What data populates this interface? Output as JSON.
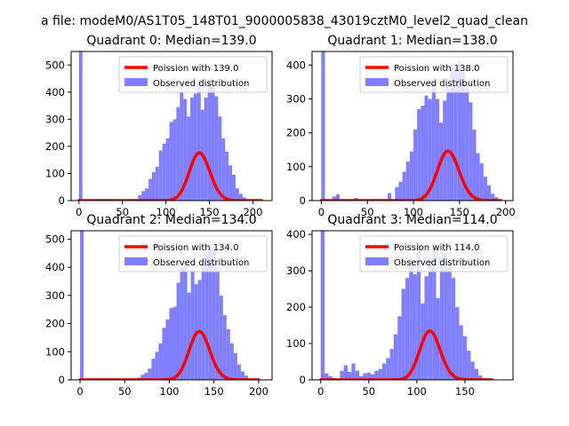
{
  "figure": {
    "title": "a file: modeM0/AS1T05_148T01_9000005838_43019cztM0_level2_quad_clean"
  },
  "chart_data": [
    {
      "type": "bar",
      "title": "Quadrant 0: Median=139.0",
      "median": 139.0,
      "bin_width": 4,
      "xlim": [
        -9,
        222
      ],
      "ylim": [
        0,
        550
      ],
      "xticks": [
        0,
        50,
        100,
        150,
        200
      ],
      "yticks": [
        0,
        100,
        200,
        300,
        400,
        500
      ],
      "legend": {
        "position": "upper-right",
        "entries": [
          "Poission with 139.0",
          "Observed distribution"
        ]
      },
      "series": [
        {
          "name": "Observed distribution",
          "color": "#7f7fff",
          "bins": [
            {
              "x": 0,
              "y": 550
            },
            {
              "x": 4,
              "y": 5
            },
            {
              "x": 68,
              "y": 20
            },
            {
              "x": 72,
              "y": 35
            },
            {
              "x": 76,
              "y": 45
            },
            {
              "x": 80,
              "y": 80
            },
            {
              "x": 84,
              "y": 105
            },
            {
              "x": 88,
              "y": 125
            },
            {
              "x": 92,
              "y": 185
            },
            {
              "x": 96,
              "y": 210
            },
            {
              "x": 100,
              "y": 230
            },
            {
              "x": 104,
              "y": 290
            },
            {
              "x": 108,
              "y": 300
            },
            {
              "x": 112,
              "y": 345
            },
            {
              "x": 116,
              "y": 400
            },
            {
              "x": 120,
              "y": 375
            },
            {
              "x": 124,
              "y": 310
            },
            {
              "x": 128,
              "y": 380
            },
            {
              "x": 132,
              "y": 395
            },
            {
              "x": 136,
              "y": 445
            },
            {
              "x": 140,
              "y": 335
            },
            {
              "x": 144,
              "y": 380
            },
            {
              "x": 148,
              "y": 445
            },
            {
              "x": 152,
              "y": 430
            },
            {
              "x": 156,
              "y": 385
            },
            {
              "x": 160,
              "y": 310
            },
            {
              "x": 164,
              "y": 230
            },
            {
              "x": 168,
              "y": 180
            },
            {
              "x": 172,
              "y": 130
            },
            {
              "x": 176,
              "y": 95
            },
            {
              "x": 180,
              "y": 45
            },
            {
              "x": 184,
              "y": 25
            },
            {
              "x": 188,
              "y": 12
            },
            {
              "x": 192,
              "y": 5
            }
          ]
        },
        {
          "name": "Poission with 139.0",
          "color": "#ff0000",
          "kind": "poisson",
          "lambda": 139.0,
          "scale": 5200,
          "x_range": [
            0,
            210
          ]
        }
      ]
    },
    {
      "type": "bar",
      "title": "Quadrant 1: Median=138.0",
      "median": 138.0,
      "bin_width": 4,
      "xlim": [
        -10,
        208
      ],
      "ylim": [
        0,
        440
      ],
      "xticks": [
        0,
        50,
        100,
        150,
        200
      ],
      "yticks": [
        0,
        100,
        200,
        300,
        400
      ],
      "legend": {
        "position": "upper-right",
        "entries": [
          "Poission with 138.0",
          "Observed distribution"
        ]
      },
      "series": [
        {
          "name": "Observed distribution",
          "color": "#7f7fff",
          "bins": [
            {
              "x": 0,
              "y": 440
            },
            {
              "x": 12,
              "y": 12
            },
            {
              "x": 16,
              "y": 18
            },
            {
              "x": 36,
              "y": 8
            },
            {
              "x": 56,
              "y": 5
            },
            {
              "x": 72,
              "y": 22
            },
            {
              "x": 80,
              "y": 40
            },
            {
              "x": 84,
              "y": 55
            },
            {
              "x": 88,
              "y": 85
            },
            {
              "x": 92,
              "y": 115
            },
            {
              "x": 96,
              "y": 145
            },
            {
              "x": 100,
              "y": 210
            },
            {
              "x": 104,
              "y": 270
            },
            {
              "x": 108,
              "y": 280
            },
            {
              "x": 112,
              "y": 310
            },
            {
              "x": 116,
              "y": 300
            },
            {
              "x": 120,
              "y": 350
            },
            {
              "x": 124,
              "y": 300
            },
            {
              "x": 128,
              "y": 230
            },
            {
              "x": 132,
              "y": 295
            },
            {
              "x": 136,
              "y": 330
            },
            {
              "x": 140,
              "y": 405
            },
            {
              "x": 144,
              "y": 390
            },
            {
              "x": 148,
              "y": 410
            },
            {
              "x": 152,
              "y": 380
            },
            {
              "x": 156,
              "y": 330
            },
            {
              "x": 160,
              "y": 290
            },
            {
              "x": 164,
              "y": 210
            },
            {
              "x": 168,
              "y": 140
            },
            {
              "x": 172,
              "y": 110
            },
            {
              "x": 176,
              "y": 70
            },
            {
              "x": 180,
              "y": 45
            },
            {
              "x": 184,
              "y": 20
            },
            {
              "x": 188,
              "y": 10
            }
          ]
        },
        {
          "name": "Poission with 138.0",
          "color": "#ff0000",
          "kind": "poisson",
          "lambda": 138.0,
          "scale": 4300,
          "x_range": [
            0,
            195
          ]
        }
      ]
    },
    {
      "type": "bar",
      "title": "Quadrant 2: Median=134.0",
      "median": 134.0,
      "bin_width": 4,
      "xlim": [
        -10,
        215
      ],
      "ylim": [
        0,
        530
      ],
      "xticks": [
        0,
        50,
        100,
        150,
        200
      ],
      "yticks": [
        0,
        100,
        200,
        300,
        400,
        500
      ],
      "legend": {
        "position": "upper-right",
        "entries": [
          "Poission with 134.0",
          "Observed distribution"
        ]
      },
      "series": [
        {
          "name": "Observed distribution",
          "color": "#7f7fff",
          "bins": [
            {
              "x": 0,
              "y": 530
            },
            {
              "x": 56,
              "y": 5
            },
            {
              "x": 64,
              "y": 8
            },
            {
              "x": 68,
              "y": 18
            },
            {
              "x": 72,
              "y": 25
            },
            {
              "x": 76,
              "y": 40
            },
            {
              "x": 80,
              "y": 75
            },
            {
              "x": 84,
              "y": 100
            },
            {
              "x": 88,
              "y": 130
            },
            {
              "x": 92,
              "y": 185
            },
            {
              "x": 96,
              "y": 215
            },
            {
              "x": 100,
              "y": 255
            },
            {
              "x": 104,
              "y": 260
            },
            {
              "x": 108,
              "y": 345
            },
            {
              "x": 112,
              "y": 400
            },
            {
              "x": 116,
              "y": 420
            },
            {
              "x": 120,
              "y": 310
            },
            {
              "x": 124,
              "y": 390
            },
            {
              "x": 128,
              "y": 340
            },
            {
              "x": 132,
              "y": 355
            },
            {
              "x": 136,
              "y": 410
            },
            {
              "x": 140,
              "y": 450
            },
            {
              "x": 144,
              "y": 465
            },
            {
              "x": 148,
              "y": 460
            },
            {
              "x": 152,
              "y": 400
            },
            {
              "x": 156,
              "y": 300
            },
            {
              "x": 160,
              "y": 230
            },
            {
              "x": 164,
              "y": 180
            },
            {
              "x": 168,
              "y": 130
            },
            {
              "x": 172,
              "y": 95
            },
            {
              "x": 176,
              "y": 55
            },
            {
              "x": 180,
              "y": 30
            },
            {
              "x": 184,
              "y": 15
            },
            {
              "x": 188,
              "y": 5
            }
          ]
        },
        {
          "name": "Poission with 134.0",
          "color": "#ff0000",
          "kind": "poisson",
          "lambda": 134.0,
          "scale": 5000,
          "x_range": [
            0,
            200
          ]
        }
      ]
    },
    {
      "type": "bar",
      "title": "Quadrant 3: Median=114.0",
      "median": 114.0,
      "bin_width": 4,
      "xlim": [
        -9,
        200
      ],
      "ylim": [
        0,
        410
      ],
      "xticks": [
        0,
        50,
        100,
        150
      ],
      "yticks": [
        0,
        100,
        200,
        300,
        400
      ],
      "legend": {
        "position": "upper-right",
        "entries": [
          "Poission with 114.0",
          "Observed distribution"
        ]
      },
      "series": [
        {
          "name": "Observed distribution",
          "color": "#7f7fff",
          "bins": [
            {
              "x": 0,
              "y": 410
            },
            {
              "x": 4,
              "y": 18
            },
            {
              "x": 8,
              "y": 10
            },
            {
              "x": 12,
              "y": 5
            },
            {
              "x": 20,
              "y": 25
            },
            {
              "x": 24,
              "y": 40
            },
            {
              "x": 28,
              "y": 22
            },
            {
              "x": 32,
              "y": 45
            },
            {
              "x": 36,
              "y": 25
            },
            {
              "x": 40,
              "y": 10
            },
            {
              "x": 44,
              "y": 18
            },
            {
              "x": 48,
              "y": 20
            },
            {
              "x": 52,
              "y": 15
            },
            {
              "x": 56,
              "y": 25
            },
            {
              "x": 60,
              "y": 30
            },
            {
              "x": 64,
              "y": 45
            },
            {
              "x": 68,
              "y": 60
            },
            {
              "x": 72,
              "y": 85
            },
            {
              "x": 76,
              "y": 125
            },
            {
              "x": 80,
              "y": 175
            },
            {
              "x": 84,
              "y": 250
            },
            {
              "x": 88,
              "y": 280
            },
            {
              "x": 92,
              "y": 335
            },
            {
              "x": 96,
              "y": 290
            },
            {
              "x": 100,
              "y": 375
            },
            {
              "x": 104,
              "y": 210
            },
            {
              "x": 108,
              "y": 285
            },
            {
              "x": 112,
              "y": 330
            },
            {
              "x": 116,
              "y": 375
            },
            {
              "x": 120,
              "y": 225
            },
            {
              "x": 124,
              "y": 335
            },
            {
              "x": 128,
              "y": 345
            },
            {
              "x": 132,
              "y": 310
            },
            {
              "x": 136,
              "y": 280
            },
            {
              "x": 140,
              "y": 200
            },
            {
              "x": 144,
              "y": 150
            },
            {
              "x": 148,
              "y": 120
            },
            {
              "x": 152,
              "y": 80
            },
            {
              "x": 156,
              "y": 50
            },
            {
              "x": 160,
              "y": 30
            },
            {
              "x": 164,
              "y": 12
            },
            {
              "x": 168,
              "y": 5
            }
          ]
        },
        {
          "name": "Poission with 114.0",
          "color": "#ff0000",
          "kind": "poisson",
          "lambda": 114.0,
          "scale": 3600,
          "x_range": [
            0,
            178
          ]
        }
      ]
    }
  ]
}
